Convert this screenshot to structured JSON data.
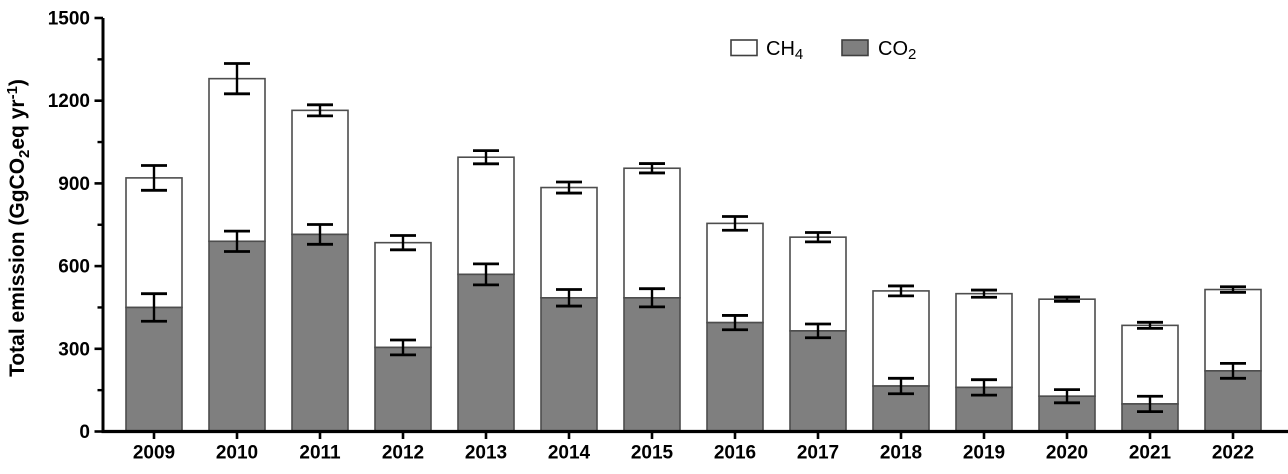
{
  "figure": {
    "background": "#ffffff"
  },
  "chart_data": {
    "type": "bar",
    "stacked": true,
    "title": "",
    "xlabel": "",
    "ylabel_parts": {
      "p1": "Total emission (GgCO",
      "sub1": "2",
      "p2": "eq yr",
      "sup1": "-1",
      "p3": ")"
    },
    "ylim": [
      0,
      1500
    ],
    "ytick_values": [
      0,
      300,
      600,
      900,
      1200,
      1500
    ],
    "ytick_labels": [
      "0",
      "300",
      "600",
      "900",
      "1200",
      "1500"
    ],
    "yminor_values": [
      150,
      450,
      750,
      1050,
      1350
    ],
    "categories": [
      "2009",
      "2010",
      "2011",
      "2012",
      "2013",
      "2014",
      "2015",
      "2016",
      "2017",
      "2018",
      "2019",
      "2020",
      "2021",
      "2022"
    ],
    "bars": [
      {
        "year": "2009",
        "co2": 450,
        "co2_err": 50,
        "ch4": 470,
        "total": 920,
        "total_err": 45
      },
      {
        "year": "2010",
        "co2": 690,
        "co2_err": 37,
        "ch4": 590,
        "total": 1280,
        "total_err": 55
      },
      {
        "year": "2011",
        "co2": 715,
        "co2_err": 36,
        "ch4": 450,
        "total": 1165,
        "total_err": 20
      },
      {
        "year": "2012",
        "co2": 305,
        "co2_err": 27,
        "ch4": 380,
        "total": 685,
        "total_err": 26
      },
      {
        "year": "2013",
        "co2": 570,
        "co2_err": 38,
        "ch4": 425,
        "total": 995,
        "total_err": 24
      },
      {
        "year": "2014",
        "co2": 485,
        "co2_err": 30,
        "ch4": 400,
        "total": 885,
        "total_err": 20
      },
      {
        "year": "2015",
        "co2": 485,
        "co2_err": 33,
        "ch4": 470,
        "total": 955,
        "total_err": 17
      },
      {
        "year": "2016",
        "co2": 395,
        "co2_err": 26,
        "ch4": 360,
        "total": 755,
        "total_err": 25
      },
      {
        "year": "2017",
        "co2": 365,
        "co2_err": 25,
        "ch4": 340,
        "total": 705,
        "total_err": 17
      },
      {
        "year": "2018",
        "co2": 165,
        "co2_err": 28,
        "ch4": 345,
        "total": 510,
        "total_err": 18
      },
      {
        "year": "2019",
        "co2": 160,
        "co2_err": 28,
        "ch4": 340,
        "total": 500,
        "total_err": 13
      },
      {
        "year": "2020",
        "co2": 128,
        "co2_err": 24,
        "ch4": 352,
        "total": 480,
        "total_err": 8
      },
      {
        "year": "2021",
        "co2": 100,
        "co2_err": 28,
        "ch4": 285,
        "total": 385,
        "total_err": 11
      },
      {
        "year": "2022",
        "co2": 220,
        "co2_err": 27,
        "ch4": 295,
        "total": 515,
        "total_err": 10
      }
    ],
    "series": [
      {
        "name": "CO2",
        "values": [
          450,
          690,
          715,
          305,
          570,
          485,
          485,
          395,
          365,
          165,
          160,
          128,
          100,
          220
        ]
      },
      {
        "name": "CH4",
        "values": [
          470,
          590,
          450,
          380,
          425,
          400,
          470,
          360,
          340,
          345,
          340,
          352,
          285,
          295
        ]
      }
    ],
    "legend": {
      "position": "top-center",
      "items": [
        {
          "name": "CH4",
          "label_base": "CH",
          "label_sub": "4",
          "fill": "#ffffff"
        },
        {
          "name": "CO2",
          "label_base": "CO",
          "label_sub": "2",
          "fill": "#7f7f7f"
        }
      ]
    },
    "colors": {
      "co2_fill": "#7f7f7f",
      "ch4_fill": "#ffffff",
      "bar_outline": "#4d4d4d",
      "error_bar": "#000000",
      "axis": "#000000",
      "text": "#000000"
    },
    "grid": false
  }
}
